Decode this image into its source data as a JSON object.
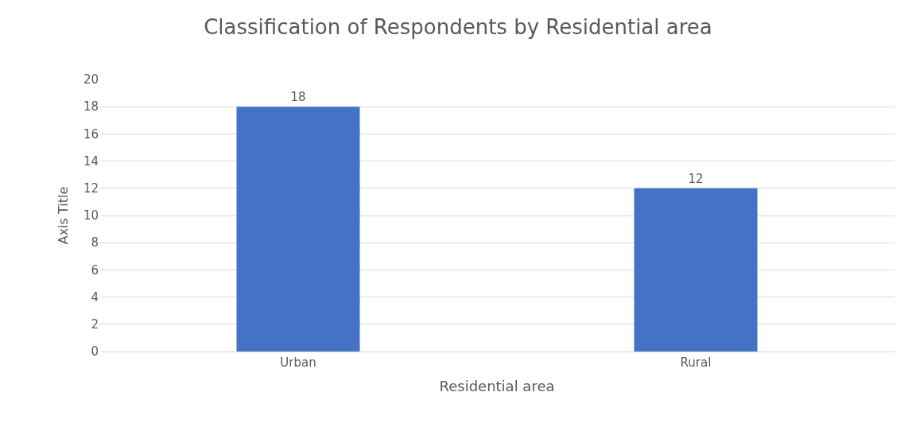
{
  "chart_data": {
    "type": "bar",
    "title": "Classification of Respondents by Residential area",
    "xlabel": "Residential area",
    "ylabel": "Axis Title",
    "categories": [
      "Urban",
      "Rural"
    ],
    "values": [
      18,
      12
    ],
    "color": "#4472c4",
    "ylim": [
      0,
      20
    ],
    "yticks": [
      0,
      2,
      4,
      6,
      8,
      10,
      12,
      14,
      16,
      18,
      20
    ],
    "grid": "y",
    "data_labels": true
  }
}
